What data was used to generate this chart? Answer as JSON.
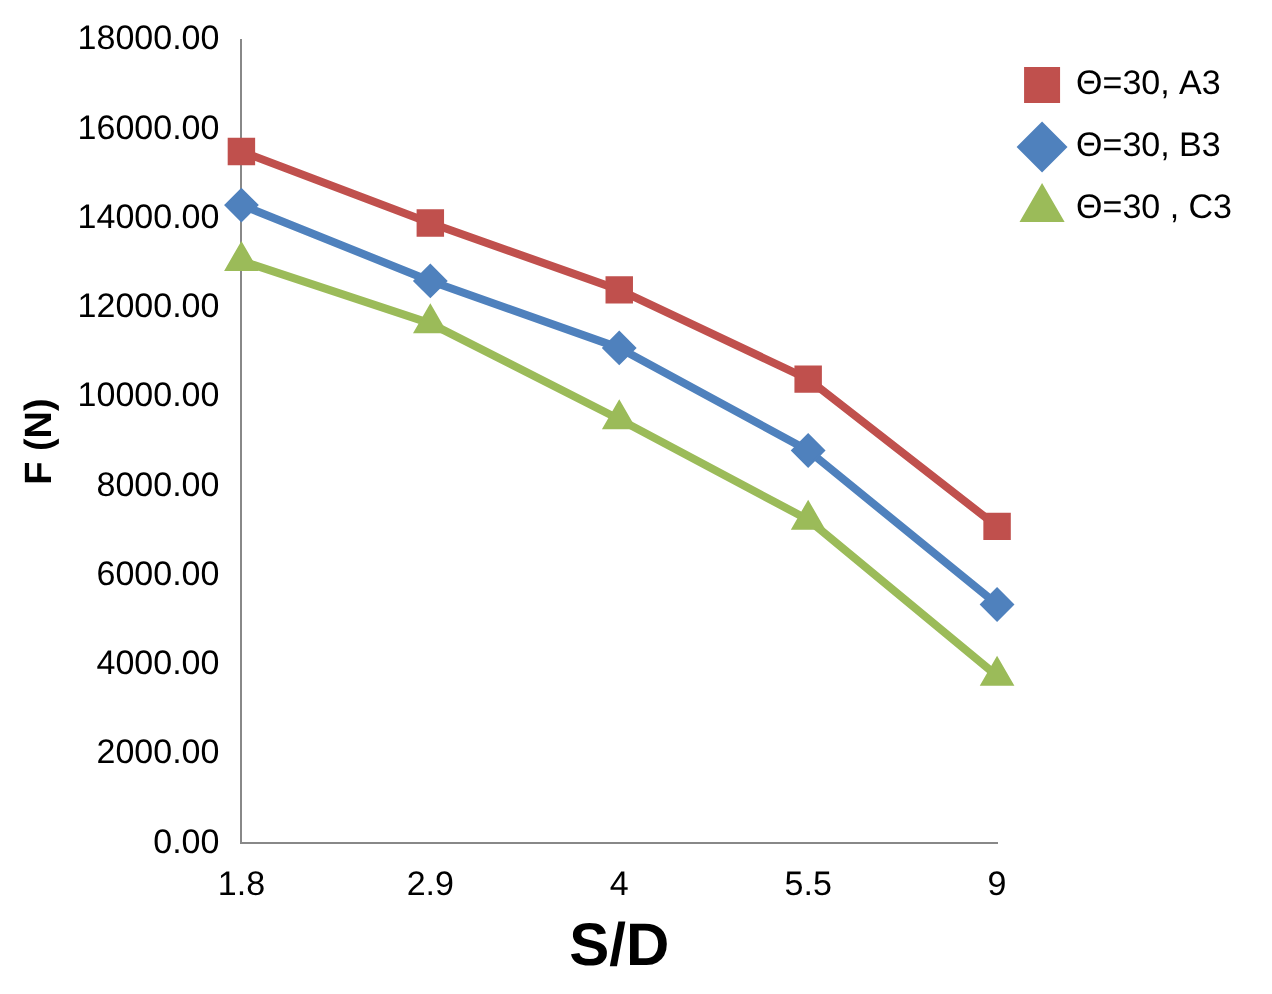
{
  "chart_data": {
    "type": "line",
    "xlabel": "S/D",
    "ylabel": "F (N)",
    "categories": [
      "1.8",
      "2.9",
      "4",
      "5.5",
      "9"
    ],
    "series": [
      {
        "name": "Θ=30, A3",
        "color": "#c0504d",
        "marker": "square",
        "values": [
          15500,
          13900,
          12400,
          10400,
          7100
        ]
      },
      {
        "name": "Θ=30, B3",
        "color": "#4f81bd",
        "marker": "diamond",
        "values": [
          14300,
          12600,
          11100,
          8800,
          5350
        ]
      },
      {
        "name": "Θ=30 , C3",
        "color": "#9bbb59",
        "marker": "triangle",
        "values": [
          13050,
          11650,
          9500,
          7250,
          3750
        ]
      }
    ],
    "ylim": [
      0,
      18000
    ],
    "yticks": [
      {
        "value": 0,
        "label": "0.00"
      },
      {
        "value": 2000,
        "label": "2000.00"
      },
      {
        "value": 4000,
        "label": "4000.00"
      },
      {
        "value": 6000,
        "label": "6000.00"
      },
      {
        "value": 8000,
        "label": "8000.00"
      },
      {
        "value": 10000,
        "label": "10000.00"
      },
      {
        "value": 12000,
        "label": "12000.00"
      },
      {
        "value": 14000,
        "label": "14000.00"
      },
      {
        "value": 16000,
        "label": "16000.00"
      },
      {
        "value": 18000,
        "label": "18000.00"
      }
    ],
    "grid": false,
    "legend": "top right",
    "line_style": "solid"
  }
}
